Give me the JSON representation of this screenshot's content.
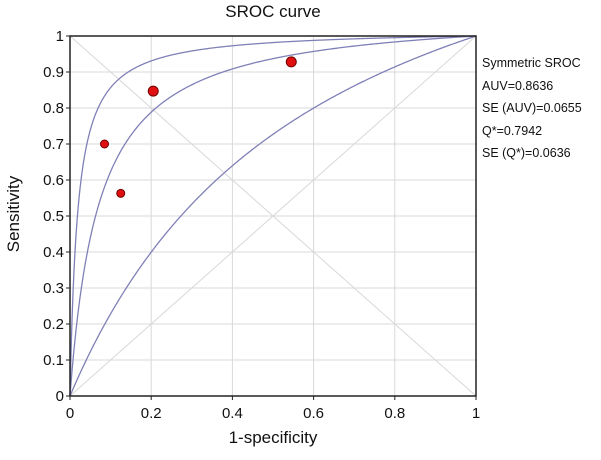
{
  "chart_data": {
    "type": "scatter",
    "title": "SROC curve",
    "xlabel": "1-specificity",
    "ylabel": "Sensitivity",
    "xlim": [
      0,
      1
    ],
    "ylim": [
      0,
      1
    ],
    "x_ticks": [
      "0",
      "0.2",
      "0.4",
      "0.6",
      "0.8",
      "1"
    ],
    "y_ticks": [
      "0",
      "0.1",
      "0.2",
      "0.3",
      "0.4",
      "0.5",
      "0.6",
      "0.7",
      "0.8",
      "0.9",
      "1"
    ],
    "grid": true,
    "points": [
      {
        "x": 0.085,
        "y": 0.7,
        "size": "small"
      },
      {
        "x": 0.125,
        "y": 0.563,
        "size": "small"
      },
      {
        "x": 0.205,
        "y": 0.847,
        "size": "large"
      },
      {
        "x": 0.545,
        "y": 0.928,
        "size": "large"
      }
    ],
    "curves": [
      {
        "role": "upper",
        "Q": 0.88
      },
      {
        "role": "sroc",
        "Q": 0.7942
      },
      {
        "role": "lower",
        "Q": 0.62
      }
    ],
    "colors": {
      "curve": "#8080b8",
      "point_fill": "#e01010",
      "point_stroke": "#700000",
      "grid": "#d8d8d8"
    },
    "annotations": {
      "title": "Symmetric SROC",
      "auv": "AUV=0.8636",
      "se_auv": "SE (AUV)=0.0655",
      "q_star": "Q*=0.7942",
      "se_q_star": "SE (Q*)=0.0636"
    }
  }
}
